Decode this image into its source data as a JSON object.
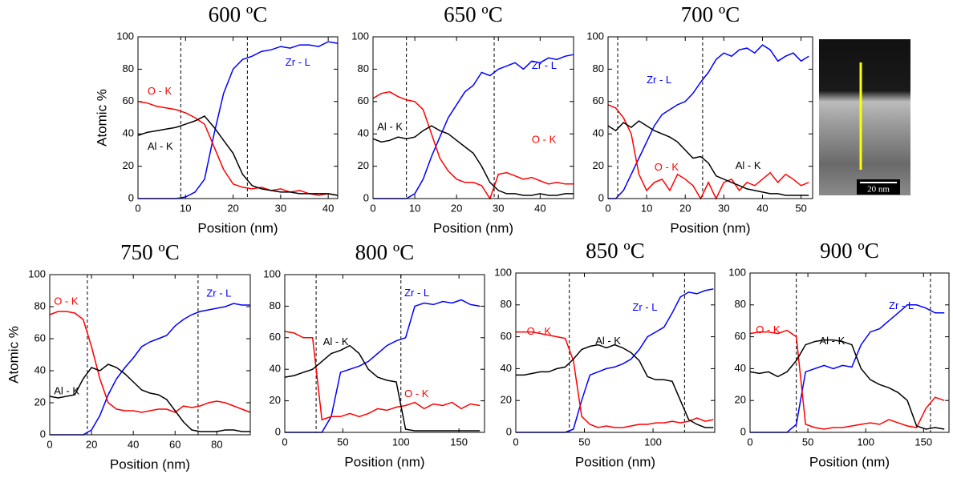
{
  "chart_data": [
    {
      "type": "line",
      "title": "600 ºC",
      "xlabel": "Position (nm)",
      "ylabel": "Atomic %",
      "x": [
        0,
        2,
        4,
        6,
        8,
        10,
        12,
        14,
        16,
        18,
        20,
        22,
        24,
        26,
        28,
        30,
        32,
        34,
        36,
        38,
        40,
        42
      ],
      "series": [
        {
          "name": "Zr - L",
          "color": "#0000ff",
          "values": [
            0,
            0,
            0,
            0,
            0,
            1,
            4,
            12,
            40,
            65,
            80,
            86,
            88,
            91,
            92,
            94,
            93,
            95,
            95,
            94,
            97,
            96
          ]
        },
        {
          "name": "O - K",
          "color": "#ff0000",
          "values": [
            60,
            59,
            57,
            56,
            55,
            53,
            50,
            46,
            32,
            18,
            9,
            7,
            6,
            7,
            5,
            6,
            4,
            5,
            3,
            2,
            3,
            2
          ]
        },
        {
          "name": "Al - K",
          "color": "#000000",
          "values": [
            39,
            41,
            42,
            43,
            44,
            46,
            48,
            51,
            44,
            36,
            28,
            15,
            8,
            6,
            5,
            4,
            4,
            3,
            3,
            3,
            3,
            2
          ]
        }
      ],
      "vlines": [
        9,
        23
      ],
      "xlim": [
        0,
        42
      ],
      "ylim": [
        0,
        100
      ],
      "xticks": [
        0,
        10,
        20,
        30,
        40
      ],
      "yticks": [
        0,
        20,
        40,
        60,
        80,
        100
      ]
    },
    {
      "type": "line",
      "title": "650 ºC",
      "xlabel": "Position (nm)",
      "x": [
        0,
        2,
        4,
        6,
        8,
        10,
        12,
        14,
        16,
        18,
        20,
        22,
        24,
        26,
        28,
        30,
        32,
        34,
        36,
        38,
        40,
        42,
        44,
        46,
        48
      ],
      "series": [
        {
          "name": "Zr - L",
          "color": "#0000ff",
          "values": [
            0,
            0,
            0,
            0,
            0,
            3,
            12,
            26,
            38,
            50,
            58,
            66,
            70,
            78,
            76,
            80,
            82,
            84,
            80,
            85,
            84,
            87,
            86,
            88,
            89
          ]
        },
        {
          "name": "O - K",
          "color": "#ff0000",
          "values": [
            62,
            65,
            66,
            63,
            61,
            60,
            55,
            40,
            25,
            17,
            12,
            10,
            10,
            8,
            0,
            15,
            16,
            14,
            12,
            13,
            11,
            9,
            10,
            9,
            9
          ]
        },
        {
          "name": "Al - K",
          "color": "#000000",
          "values": [
            37,
            35,
            36,
            38,
            37,
            38,
            42,
            45,
            42,
            40,
            36,
            32,
            28,
            20,
            10,
            5,
            3,
            3,
            2,
            2,
            3,
            2,
            2,
            3,
            3
          ]
        }
      ],
      "vlines": [
        8,
        29
      ],
      "xlim": [
        0,
        48
      ],
      "ylim": [
        0,
        100
      ],
      "xticks": [
        0,
        10,
        20,
        30,
        40
      ],
      "yticks": [
        0,
        20,
        40,
        60,
        80,
        100
      ]
    },
    {
      "type": "line",
      "title": "700 ºC",
      "xlabel": "Position (nm)",
      "x": [
        0,
        2,
        4,
        6,
        8,
        10,
        12,
        14,
        16,
        18,
        20,
        22,
        24,
        26,
        28,
        30,
        32,
        34,
        36,
        38,
        40,
        42,
        44,
        46,
        48,
        50,
        52
      ],
      "series": [
        {
          "name": "Zr - L",
          "color": "#0000ff",
          "values": [
            0,
            0,
            5,
            15,
            25,
            35,
            45,
            52,
            55,
            58,
            60,
            65,
            72,
            78,
            86,
            90,
            88,
            92,
            93,
            90,
            95,
            92,
            85,
            88,
            90,
            85,
            88
          ]
        },
        {
          "name": "O - K",
          "color": "#ff0000",
          "values": [
            58,
            56,
            50,
            40,
            15,
            5,
            10,
            12,
            5,
            15,
            12,
            8,
            0,
            10,
            0,
            10,
            12,
            5,
            10,
            8,
            12,
            16,
            10,
            15,
            12,
            8,
            10
          ]
        },
        {
          "name": "Al - K",
          "color": "#000000",
          "values": [
            45,
            42,
            47,
            44,
            48,
            45,
            42,
            40,
            38,
            35,
            30,
            25,
            26,
            22,
            14,
            12,
            10,
            8,
            6,
            5,
            4,
            3,
            3,
            2,
            2,
            2,
            2
          ]
        }
      ],
      "vlines": [
        2.5,
        24.5
      ],
      "xlim": [
        0,
        53
      ],
      "ylim": [
        0,
        100
      ],
      "xticks": [
        0,
        10,
        20,
        30,
        40,
        50
      ],
      "yticks": [
        0,
        20,
        40,
        60,
        80,
        100
      ]
    },
    {
      "type": "line",
      "title": "750 ºC",
      "xlabel": "Position (nm)",
      "ylabel": "Atomic %",
      "x": [
        0,
        4,
        8,
        12,
        16,
        20,
        24,
        28,
        32,
        36,
        40,
        44,
        48,
        52,
        56,
        60,
        64,
        68,
        72,
        76,
        80,
        84,
        88,
        92,
        96
      ],
      "series": [
        {
          "name": "Zr - L",
          "color": "#0000ff",
          "values": [
            0,
            0,
            0,
            0,
            0,
            3,
            12,
            25,
            35,
            42,
            48,
            55,
            58,
            60,
            62,
            68,
            72,
            75,
            77,
            78,
            79,
            80,
            82,
            81,
            81
          ]
        },
        {
          "name": "O - K",
          "color": "#ff0000",
          "values": [
            75,
            77,
            77,
            76,
            72,
            55,
            35,
            20,
            16,
            15,
            15,
            14,
            15,
            16,
            16,
            14,
            18,
            17,
            18,
            20,
            21,
            20,
            18,
            16,
            14
          ]
        },
        {
          "name": "Al - K",
          "color": "#000000",
          "values": [
            24,
            23,
            24,
            25,
            35,
            42,
            40,
            44,
            42,
            38,
            33,
            28,
            26,
            25,
            22,
            15,
            8,
            3,
            2,
            2,
            2,
            3,
            3,
            2,
            2
          ]
        }
      ],
      "vlines": [
        18,
        71
      ],
      "xlim": [
        0,
        96
      ],
      "ylim": [
        0,
        100
      ],
      "xticks": [
        0,
        20,
        40,
        60,
        80
      ],
      "yticks": [
        0,
        20,
        40,
        60,
        80,
        100
      ]
    },
    {
      "type": "line",
      "title": "800 ºC",
      "xlabel": "Position (nm)",
      "x": [
        0,
        8,
        16,
        24,
        32,
        40,
        48,
        56,
        64,
        72,
        80,
        88,
        96,
        104,
        112,
        120,
        128,
        136,
        144,
        152,
        160,
        168
      ],
      "series": [
        {
          "name": "Zr - L",
          "color": "#0000ff",
          "values": [
            0,
            0,
            0,
            0,
            0,
            10,
            38,
            40,
            42,
            45,
            50,
            55,
            58,
            60,
            80,
            82,
            81,
            83,
            82,
            84,
            81,
            80
          ]
        },
        {
          "name": "O - K",
          "color": "#ff0000",
          "values": [
            64,
            63,
            60,
            60,
            8,
            10,
            10,
            12,
            10,
            12,
            15,
            14,
            16,
            17,
            19,
            15,
            18,
            17,
            19,
            15,
            18,
            17
          ]
        },
        {
          "name": "Al - K",
          "color": "#000000",
          "values": [
            35,
            36,
            38,
            40,
            45,
            50,
            52,
            55,
            50,
            40,
            35,
            33,
            32,
            2,
            1,
            1,
            1,
            1,
            1,
            1,
            1,
            1
          ]
        }
      ],
      "vlines": [
        27,
        100
      ],
      "xlim": [
        0,
        172
      ],
      "ylim": [
        0,
        100
      ],
      "xticks": [
        0,
        50,
        100,
        150
      ],
      "yticks": [
        0,
        20,
        40,
        60,
        80,
        100
      ]
    },
    {
      "type": "line",
      "title": "850 ºC",
      "xlabel": "Position (nm)",
      "x": [
        0,
        6,
        12,
        18,
        24,
        30,
        36,
        42,
        48,
        54,
        60,
        66,
        72,
        78,
        84,
        90,
        96,
        102,
        108,
        114,
        120,
        126,
        132,
        138,
        144
      ],
      "series": [
        {
          "name": "Zr - L",
          "color": "#0000ff",
          "values": [
            0,
            0,
            0,
            0,
            0,
            0,
            0,
            2,
            20,
            36,
            38,
            40,
            41,
            43,
            46,
            52,
            60,
            63,
            66,
            75,
            85,
            88,
            87,
            89,
            90
          ]
        },
        {
          "name": "O - K",
          "color": "#ff0000",
          "values": [
            63,
            63,
            63,
            62,
            61,
            60,
            59,
            45,
            10,
            5,
            3,
            4,
            3,
            3,
            4,
            5,
            5,
            6,
            6,
            7,
            6,
            7,
            9,
            7,
            8
          ]
        },
        {
          "name": "Al - K",
          "color": "#000000",
          "values": [
            36,
            36,
            37,
            38,
            38,
            40,
            41,
            46,
            52,
            54,
            55,
            53,
            55,
            53,
            50,
            45,
            35,
            33,
            33,
            32,
            20,
            8,
            5,
            3,
            3
          ]
        }
      ],
      "vlines": [
        39,
        123
      ],
      "xlim": [
        0,
        145
      ],
      "ylim": [
        0,
        100
      ],
      "xticks": [
        0,
        50,
        100
      ],
      "yticks": [
        0,
        20,
        40,
        60,
        80,
        100
      ]
    },
    {
      "type": "line",
      "title": "900 ºC",
      "xlabel": "Position (nm)",
      "x": [
        0,
        8,
        16,
        24,
        32,
        40,
        48,
        56,
        64,
        72,
        80,
        88,
        96,
        104,
        112,
        120,
        128,
        136,
        144,
        152,
        160,
        168
      ],
      "series": [
        {
          "name": "Zr - L",
          "color": "#0000ff",
          "values": [
            0,
            0,
            0,
            0,
            0,
            5,
            38,
            40,
            42,
            40,
            42,
            41,
            55,
            63,
            65,
            70,
            75,
            80,
            80,
            78,
            75,
            75
          ]
        },
        {
          "name": "O - K",
          "color": "#ff0000",
          "values": [
            62,
            63,
            63,
            62,
            64,
            60,
            5,
            3,
            2,
            3,
            3,
            4,
            5,
            6,
            5,
            8,
            6,
            4,
            3,
            15,
            22,
            20
          ]
        },
        {
          "name": "Al - K",
          "color": "#000000",
          "values": [
            38,
            37,
            38,
            35,
            38,
            45,
            55,
            57,
            58,
            58,
            57,
            55,
            40,
            33,
            30,
            28,
            25,
            20,
            4,
            2,
            3,
            2
          ]
        }
      ],
      "vlines": [
        40,
        156
      ],
      "xlim": [
        0,
        172
      ],
      "ylim": [
        0,
        100
      ],
      "xticks": [
        0,
        50,
        100,
        150
      ],
      "yticks": [
        0,
        20,
        40,
        60,
        80,
        100
      ]
    }
  ],
  "image": {
    "scale_bar": "20 nm"
  }
}
